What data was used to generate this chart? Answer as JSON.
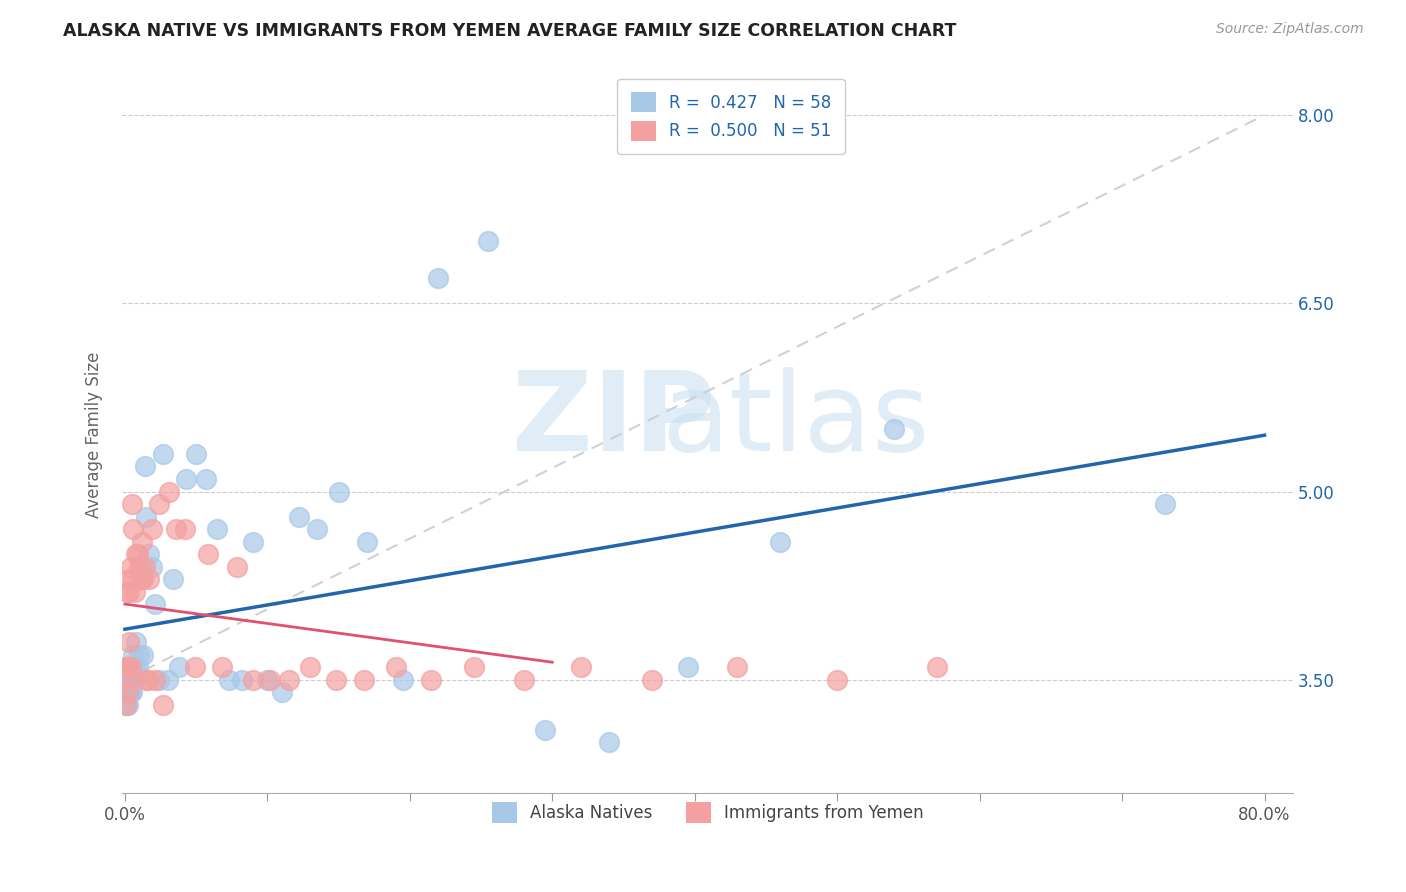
{
  "title": "ALASKA NATIVE VS IMMIGRANTS FROM YEMEN AVERAGE FAMILY SIZE CORRELATION CHART",
  "source": "Source: ZipAtlas.com",
  "ylabel": "Average Family Size",
  "ymin": 2.6,
  "ymax": 8.3,
  "xmin": -0.002,
  "xmax": 0.82,
  "blue_color": "#a8c8e8",
  "pink_color": "#f4a0a0",
  "blue_line_color": "#2166ac",
  "pink_line_color": "#e05070",
  "dashed_line_color": "#cccccc",
  "ytick_vals": [
    3.5,
    5.0,
    6.5,
    8.0
  ],
  "ytick_labels": [
    "3.50",
    "5.00",
    "6.50",
    "8.00"
  ],
  "grid_ytick_vals": [
    3.5,
    5.0,
    6.5,
    8.0
  ],
  "alaska_native_x": [
    0.0005,
    0.001,
    0.001,
    0.0015,
    0.0015,
    0.002,
    0.002,
    0.002,
    0.003,
    0.003,
    0.003,
    0.004,
    0.004,
    0.005,
    0.005,
    0.005,
    0.006,
    0.006,
    0.007,
    0.007,
    0.008,
    0.009,
    0.01,
    0.011,
    0.012,
    0.013,
    0.014,
    0.015,
    0.017,
    0.019,
    0.021,
    0.024,
    0.027,
    0.03,
    0.034,
    0.038,
    0.043,
    0.05,
    0.057,
    0.065,
    0.073,
    0.082,
    0.09,
    0.1,
    0.11,
    0.122,
    0.135,
    0.15,
    0.17,
    0.195,
    0.22,
    0.255,
    0.295,
    0.34,
    0.395,
    0.46,
    0.54,
    0.73
  ],
  "alaska_native_y": [
    3.5,
    3.3,
    3.6,
    3.4,
    3.5,
    3.4,
    3.5,
    3.3,
    3.5,
    3.4,
    3.6,
    3.5,
    3.4,
    3.4,
    3.6,
    3.5,
    3.7,
    3.5,
    3.6,
    3.5,
    3.8,
    3.6,
    3.7,
    4.4,
    4.3,
    3.7,
    5.2,
    4.8,
    4.5,
    4.4,
    4.1,
    3.5,
    5.3,
    3.5,
    4.3,
    3.6,
    5.1,
    5.3,
    5.1,
    4.7,
    3.5,
    3.5,
    4.6,
    3.5,
    3.4,
    4.8,
    4.7,
    5.0,
    4.6,
    3.5,
    6.7,
    7.0,
    3.1,
    3.0,
    3.6,
    4.6,
    5.5,
    4.9
  ],
  "yemen_x": [
    0.0005,
    0.001,
    0.001,
    0.0015,
    0.002,
    0.002,
    0.003,
    0.003,
    0.003,
    0.004,
    0.004,
    0.005,
    0.006,
    0.006,
    0.007,
    0.008,
    0.009,
    0.01,
    0.011,
    0.012,
    0.013,
    0.014,
    0.015,
    0.016,
    0.017,
    0.019,
    0.021,
    0.024,
    0.027,
    0.031,
    0.036,
    0.042,
    0.049,
    0.058,
    0.068,
    0.079,
    0.09,
    0.102,
    0.115,
    0.13,
    0.148,
    0.168,
    0.19,
    0.215,
    0.245,
    0.28,
    0.32,
    0.37,
    0.43,
    0.5,
    0.57
  ],
  "yemen_y": [
    3.5,
    3.3,
    3.6,
    4.2,
    3.4,
    3.6,
    4.3,
    3.8,
    4.2,
    3.6,
    4.4,
    4.9,
    4.7,
    4.3,
    4.2,
    4.5,
    4.5,
    4.4,
    4.3,
    4.6,
    4.3,
    4.4,
    3.5,
    3.5,
    4.3,
    4.7,
    3.5,
    4.9,
    3.3,
    5.0,
    4.7,
    4.7,
    3.6,
    4.5,
    3.6,
    4.4,
    3.5,
    3.5,
    3.5,
    3.6,
    3.5,
    3.5,
    3.6,
    3.5,
    3.6,
    3.5,
    3.6,
    3.5,
    3.6,
    3.5,
    3.6
  ],
  "blue_line_x_start": 0.0,
  "blue_line_x_end": 0.8,
  "pink_line_x_start": 0.0,
  "pink_line_x_end": 0.3
}
